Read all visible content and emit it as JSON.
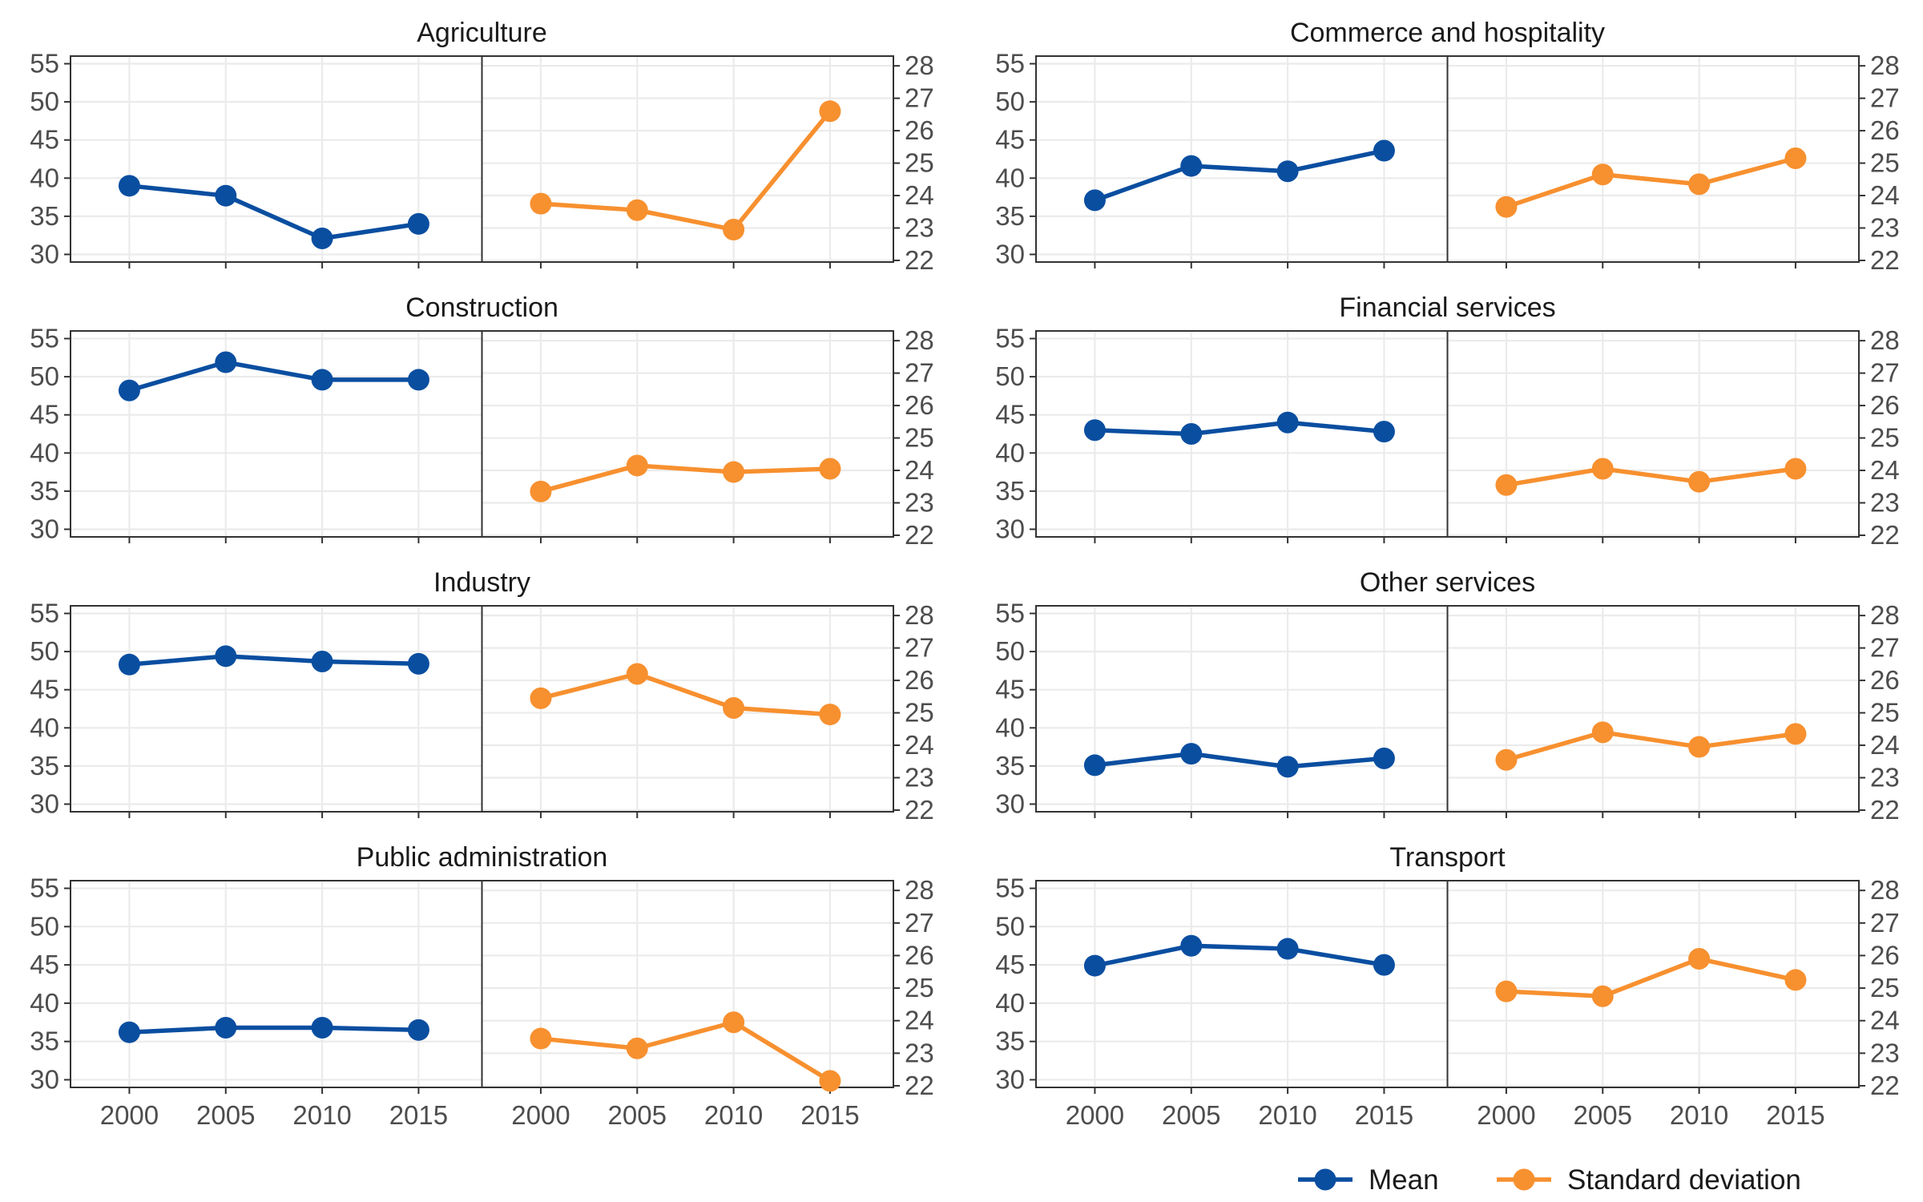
{
  "chart_data": {
    "type": "line",
    "layout": "faceted 4x2 grid; each facet has a left panel (Mean, left axis) and right panel (Standard deviation, right axis)",
    "x": [
      2000,
      2005,
      2010,
      2015
    ],
    "xticks": [
      "2000",
      "2005",
      "2010",
      "2015"
    ],
    "left_axis": {
      "ylim": [
        29,
        56
      ],
      "ticks": [
        "30",
        "35",
        "40",
        "45",
        "50",
        "55"
      ]
    },
    "right_axis": {
      "ylim": [
        21.95,
        28.3
      ],
      "ticks": [
        "22",
        "23",
        "24",
        "25",
        "26",
        "27",
        "28"
      ]
    },
    "grid": true,
    "legend_position": "bottom-right",
    "series": [
      {
        "name": "Mean",
        "color": "#0a4ea0",
        "axis": "left"
      },
      {
        "name": "Standard deviation",
        "color": "#f7902f",
        "axis": "right"
      }
    ],
    "facets": [
      {
        "title": "Agriculture",
        "mean": [
          39.0,
          37.7,
          32.1,
          34.0
        ],
        "sd": [
          23.75,
          23.55,
          22.95,
          26.6
        ]
      },
      {
        "title": "Commerce and hospitality",
        "mean": [
          37.1,
          41.6,
          40.9,
          43.6
        ],
        "sd": [
          23.65,
          24.65,
          24.35,
          25.15
        ]
      },
      {
        "title": "Construction",
        "mean": [
          48.2,
          51.9,
          49.6,
          49.6
        ],
        "sd": [
          23.35,
          24.15,
          23.95,
          24.05
        ]
      },
      {
        "title": "Financial services",
        "mean": [
          43.0,
          42.5,
          44.0,
          42.8
        ],
        "sd": [
          23.55,
          24.05,
          23.65,
          24.05
        ]
      },
      {
        "title": "Industry",
        "mean": [
          48.3,
          49.4,
          48.7,
          48.4
        ],
        "sd": [
          25.45,
          26.2,
          25.15,
          24.95
        ]
      },
      {
        "title": "Other services",
        "mean": [
          35.1,
          36.6,
          34.9,
          36.0
        ],
        "sd": [
          23.55,
          24.4,
          23.95,
          24.35
        ]
      },
      {
        "title": "Public administration",
        "mean": [
          36.2,
          36.8,
          36.8,
          36.5
        ],
        "sd": [
          23.45,
          23.15,
          23.95,
          22.15
        ]
      },
      {
        "title": "Transport",
        "mean": [
          44.9,
          47.5,
          47.1,
          45.0
        ],
        "sd": [
          24.9,
          24.75,
          25.9,
          25.25
        ]
      }
    ]
  }
}
